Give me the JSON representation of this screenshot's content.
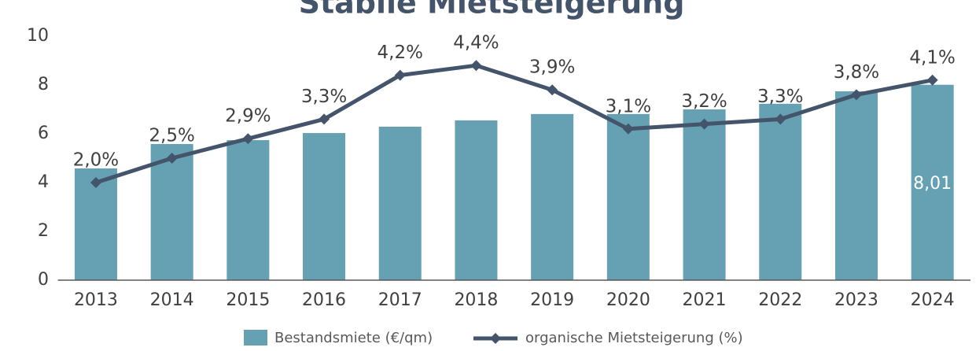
{
  "chart_data": {
    "type": "bar",
    "title": "Stabile Mietsteigerung",
    "categories": [
      "2013",
      "2014",
      "2015",
      "2016",
      "2017",
      "2018",
      "2019",
      "2020",
      "2021",
      "2022",
      "2023",
      "2024"
    ],
    "series": [
      {
        "name": "Bestandsmiete (€/qm)",
        "type": "bar",
        "color": "#65a0b3",
        "values": [
          4.58,
          5.58,
          5.74,
          6.03,
          6.29,
          6.55,
          6.81,
          6.81,
          7.0,
          7.23,
          7.74,
          8.01
        ],
        "value_labels": [
          null,
          null,
          null,
          null,
          null,
          null,
          null,
          null,
          null,
          null,
          null,
          "8,01"
        ]
      },
      {
        "name": "organische Mietsteigerung (%)",
        "type": "line",
        "axis": "y2",
        "color": "#44546a",
        "values": [
          2.0,
          2.5,
          2.9,
          3.3,
          4.2,
          4.4,
          3.9,
          3.1,
          3.2,
          3.3,
          3.8,
          4.1
        ],
        "value_labels": [
          "2,0%",
          "2,5%",
          "2,9%",
          "3,3%",
          "4,2%",
          "4,4%",
          "3,9%",
          "3,1%",
          "3,2%",
          "3,3%",
          "3,8%",
          "4,1%"
        ]
      }
    ],
    "ylim": [
      0,
      10
    ],
    "yticks": [
      0,
      2,
      4,
      6,
      8,
      10
    ],
    "y2lim": [
      0,
      5
    ],
    "grid": false,
    "legend": "bottom"
  }
}
